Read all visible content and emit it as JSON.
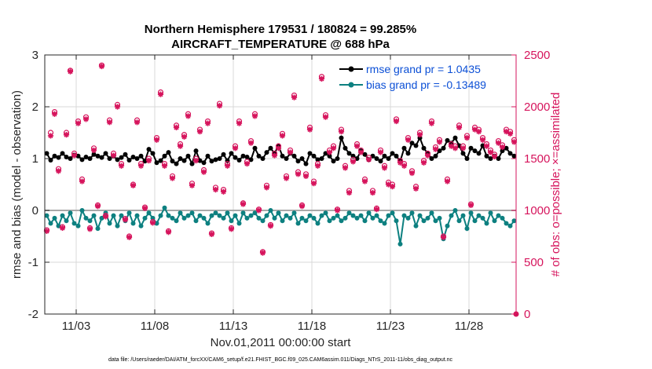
{
  "chart_data": {
    "type": "line",
    "title_line1": "Northern Hemisphere 179531 / 180824 = 99.285%",
    "title_line2": "AIRCRAFT_TEMPERATURE @ 688 hPa",
    "xlabel": "Nov.01,2011 00:00:00 start",
    "ylabel_left": "rmse and bias (model - observation)",
    "ylabel_right": "# of obs: o=possible; ×=assimilated",
    "footer": "data file: /Users/raeder/DAI/ATM_forcXX/CAM6_setup/f.e21.FHIST_BGC.f09_025.CAM6assim.011/Diags_NTrS_2011-11/obs_diag_output.nc",
    "xlim": [
      1.0,
      31.0
    ],
    "ylim_left": [
      -2,
      3
    ],
    "ylim_right": [
      0,
      2500
    ],
    "x_ticks": [
      3,
      8,
      13,
      18,
      23,
      28
    ],
    "x_tick_labels": [
      "11/03",
      "11/08",
      "11/13",
      "11/18",
      "11/23",
      "11/28"
    ],
    "y_left_ticks": [
      -2,
      -1,
      0,
      1,
      2,
      3
    ],
    "y_left_tick_labels": [
      "-2",
      "-1",
      "0",
      "1",
      "2",
      "3"
    ],
    "y_right_ticks": [
      0,
      500,
      1000,
      1500,
      2000,
      2500
    ],
    "y_right_tick_labels": [
      "0",
      "500",
      "1000",
      "1500",
      "2000",
      "2500"
    ],
    "colors": {
      "rmse": "#000000",
      "bias": "#0d8080",
      "obs": "#d6145c",
      "zero_line": "#aaaaaa",
      "grid": "#d9d9d9",
      "legend_text": "#0b4fd6"
    },
    "legend_position": "top-right",
    "series": [
      {
        "name": "rmse grand pr = 1.0435",
        "axis": "left",
        "x": [
          1.125,
          1.375,
          1.625,
          1.875,
          2.125,
          2.375,
          2.625,
          2.875,
          3.125,
          3.375,
          3.625,
          3.875,
          4.125,
          4.375,
          4.625,
          4.875,
          5.125,
          5.375,
          5.625,
          5.875,
          6.125,
          6.375,
          6.625,
          6.875,
          7.125,
          7.375,
          7.625,
          7.875,
          8.125,
          8.375,
          8.625,
          8.875,
          9.125,
          9.375,
          9.625,
          9.875,
          10.125,
          10.375,
          10.625,
          10.875,
          11.125,
          11.375,
          11.625,
          11.875,
          12.125,
          12.375,
          12.625,
          12.875,
          13.125,
          13.375,
          13.625,
          13.875,
          14.125,
          14.375,
          14.625,
          14.875,
          15.125,
          15.375,
          15.625,
          15.875,
          16.125,
          16.375,
          16.625,
          16.875,
          17.125,
          17.375,
          17.625,
          17.875,
          18.125,
          18.375,
          18.625,
          18.875,
          19.125,
          19.375,
          19.625,
          19.875,
          20.125,
          20.375,
          20.625,
          20.875,
          21.125,
          21.375,
          21.625,
          21.875,
          22.125,
          22.375,
          22.625,
          22.875,
          23.125,
          23.375,
          23.625,
          23.875,
          24.125,
          24.375,
          24.625,
          24.875,
          25.125,
          25.375,
          25.625,
          25.875,
          26.125,
          26.375,
          26.625,
          26.875,
          27.125,
          27.375,
          27.625,
          27.875,
          28.125,
          28.375,
          28.625,
          28.875,
          29.125,
          29.375,
          29.625,
          29.875,
          30.125,
          30.375,
          30.625,
          30.875
        ],
        "values": [
          1.1,
          0.97,
          1.05,
          1.02,
          1.1,
          1.03,
          1.0,
          1.07,
          1.05,
          0.98,
          1.03,
          1.0,
          1.08,
          1.05,
          1.02,
          1.1,
          1.0,
          1.05,
          0.98,
          1.02,
          1.08,
          0.97,
          1.03,
          1.0,
          1.05,
          0.95,
          1.18,
          1.1,
          0.92,
          0.96,
          1.05,
          1.12,
          0.95,
          0.9,
          1.0,
          0.96,
          1.05,
          0.9,
          1.15,
          0.96,
          0.92,
          1.05,
          0.95,
          0.98,
          1.0,
          1.08,
          0.96,
          1.1,
          1.02,
          0.97,
          1.05,
          1.03,
          0.98,
          1.2,
          1.05,
          1.0,
          1.12,
          1.2,
          1.1,
          1.25,
          1.05,
          1.0,
          1.1,
          1.05,
          0.95,
          1.0,
          0.9,
          1.1,
          1.05,
          0.98,
          1.0,
          1.1,
          1.05,
          0.95,
          1.0,
          1.4,
          1.2,
          1.1,
          1.05,
          1.0,
          1.15,
          1.08,
          0.98,
          1.05,
          1.0,
          0.95,
          1.05,
          1.0,
          1.1,
          1.05,
          0.95,
          1.2,
          1.1,
          1.3,
          1.25,
          1.4,
          1.2,
          1.1,
          1.0,
          1.05,
          1.15,
          1.2,
          1.35,
          1.3,
          1.4,
          1.25,
          1.1,
          1.0,
          1.2,
          1.15,
          1.1,
          1.25,
          1.05,
          1.0,
          1.05,
          1.0,
          1.15,
          1.2,
          1.1,
          1.05
        ]
      },
      {
        "name": "bias grand pr = -0.13489",
        "axis": "left",
        "x": [
          1.125,
          1.375,
          1.625,
          1.875,
          2.125,
          2.375,
          2.625,
          2.875,
          3.125,
          3.375,
          3.625,
          3.875,
          4.125,
          4.375,
          4.625,
          4.875,
          5.125,
          5.375,
          5.625,
          5.875,
          6.125,
          6.375,
          6.625,
          6.875,
          7.125,
          7.375,
          7.625,
          7.875,
          8.125,
          8.375,
          8.625,
          8.875,
          9.125,
          9.375,
          9.625,
          9.875,
          10.125,
          10.375,
          10.625,
          10.875,
          11.125,
          11.375,
          11.625,
          11.875,
          12.125,
          12.375,
          12.625,
          12.875,
          13.125,
          13.375,
          13.625,
          13.875,
          14.125,
          14.375,
          14.625,
          14.875,
          15.125,
          15.375,
          15.625,
          15.875,
          16.125,
          16.375,
          16.625,
          16.875,
          17.125,
          17.375,
          17.625,
          17.875,
          18.125,
          18.375,
          18.625,
          18.875,
          19.125,
          19.375,
          19.625,
          19.875,
          20.125,
          20.375,
          20.625,
          20.875,
          21.125,
          21.375,
          21.625,
          21.875,
          22.125,
          22.375,
          22.625,
          22.875,
          23.125,
          23.375,
          23.625,
          23.875,
          24.125,
          24.375,
          24.625,
          24.875,
          25.125,
          25.375,
          25.625,
          25.875,
          26.125,
          26.375,
          26.625,
          26.875,
          27.125,
          27.375,
          27.625,
          27.875,
          28.125,
          28.375,
          28.625,
          28.875,
          29.125,
          29.375,
          29.625,
          29.875,
          30.125,
          30.375,
          30.625,
          30.875
        ],
        "values": [
          -0.1,
          -0.25,
          -0.15,
          -0.3,
          -0.1,
          -0.2,
          -0.05,
          -0.25,
          -0.3,
          0.0,
          -0.15,
          -0.2,
          -0.1,
          -0.35,
          -0.15,
          -0.05,
          -0.25,
          -0.1,
          -0.3,
          -0.1,
          -0.2,
          -0.05,
          -0.25,
          -0.1,
          -0.3,
          -0.15,
          -0.05,
          -0.15,
          -0.25,
          -0.1,
          0.05,
          -0.1,
          -0.15,
          -0.2,
          -0.05,
          -0.15,
          -0.1,
          -0.05,
          -0.2,
          -0.1,
          -0.15,
          -0.25,
          -0.1,
          -0.05,
          -0.1,
          -0.15,
          -0.05,
          -0.2,
          -0.1,
          -0.25,
          -0.05,
          -0.15,
          -0.1,
          -0.05,
          -0.15,
          -0.2,
          -0.1,
          0.0,
          -0.15,
          -0.05,
          -0.2,
          -0.1,
          -0.15,
          -0.05,
          -0.25,
          -0.15,
          -0.2,
          -0.1,
          -0.15,
          -0.25,
          -0.1,
          -0.05,
          -0.2,
          -0.15,
          -0.1,
          -0.2,
          -0.15,
          -0.05,
          -0.1,
          -0.15,
          -0.1,
          -0.2,
          -0.05,
          -0.15,
          -0.1,
          -0.2,
          -0.25,
          -0.1,
          -0.05,
          -0.2,
          -0.65,
          -0.1,
          -0.15,
          -0.05,
          -0.3,
          -0.1,
          -0.2,
          -0.15,
          -0.05,
          -0.2,
          -0.15,
          -0.55,
          -0.3,
          -0.1,
          0.0,
          -0.2,
          -0.1,
          -0.35,
          -0.05,
          -0.2,
          -0.1,
          -0.15,
          -0.25,
          -0.05,
          -0.2,
          -0.1,
          -0.15,
          -0.25,
          -0.3,
          -0.2
        ]
      },
      {
        "name": "obs possible",
        "axis": "right",
        "marker": "circle",
        "x": [
          1.125,
          1.375,
          1.625,
          1.875,
          2.125,
          2.375,
          2.625,
          2.875,
          3.125,
          3.375,
          3.625,
          3.875,
          4.125,
          4.375,
          4.625,
          4.875,
          5.125,
          5.375,
          5.625,
          5.875,
          6.125,
          6.375,
          6.625,
          6.875,
          7.125,
          7.375,
          7.625,
          7.875,
          8.125,
          8.375,
          8.625,
          8.875,
          9.125,
          9.375,
          9.625,
          9.875,
          10.125,
          10.375,
          10.625,
          10.875,
          11.125,
          11.375,
          11.625,
          11.875,
          12.125,
          12.375,
          12.625,
          12.875,
          13.125,
          13.375,
          13.625,
          13.875,
          14.125,
          14.375,
          14.625,
          14.875,
          15.125,
          15.375,
          15.625,
          15.875,
          16.125,
          16.375,
          16.625,
          16.875,
          17.125,
          17.375,
          17.625,
          17.875,
          18.125,
          18.375,
          18.625,
          18.875,
          19.125,
          19.375,
          19.625,
          19.875,
          20.125,
          20.375,
          20.625,
          20.875,
          21.125,
          21.375,
          21.625,
          21.875,
          22.125,
          22.375,
          22.625,
          22.875,
          23.125,
          23.375,
          23.625,
          23.875,
          24.125,
          24.375,
          24.625,
          24.875,
          25.125,
          25.375,
          25.625,
          25.875,
          26.125,
          26.375,
          26.625,
          26.875,
          27.125,
          27.375,
          27.625,
          27.875,
          28.125,
          28.375,
          28.625,
          28.875,
          29.125,
          29.375,
          29.625,
          29.875,
          30.125,
          30.375,
          30.625,
          30.875
        ],
        "values": [
          810,
          1750,
          1950,
          1400,
          840,
          1750,
          2350,
          1550,
          1860,
          1300,
          1900,
          830,
          1600,
          1050,
          2400,
          950,
          1870,
          1550,
          2020,
          1450,
          920,
          750,
          1250,
          1870,
          1450,
          1030,
          1500,
          890,
          1700,
          2140,
          1450,
          800,
          1330,
          1820,
          1640,
          1730,
          1930,
          1260,
          1500,
          1780,
          1390,
          1860,
          780,
          1220,
          2030,
          1200,
          1450,
          830,
          1620,
          1860,
          1070,
          1470,
          1670,
          1930,
          1010,
          600,
          1240,
          860,
          1550,
          1620,
          1740,
          1330,
          1580,
          2110,
          1370,
          1050,
          1350,
          1800,
          1280,
          1450,
          2290,
          1920,
          1580,
          1620,
          1010,
          1780,
          1430,
          1190,
          1490,
          1640,
          1580,
          1300,
          1510,
          1190,
          1020,
          1580,
          1430,
          1270,
          1250,
          1880,
          1480,
          1450,
          1700,
          1380,
          1230,
          1750,
          1480,
          1550,
          1860,
          1610,
          1680,
          750,
          1300,
          1640,
          1620,
          1820,
          1620,
          1720,
          1060,
          1800,
          1780,
          1700,
          1640,
          1580,
          1540,
          1670,
          1630,
          1780,
          1760,
          1680
        ]
      },
      {
        "name": "obs assimilated",
        "axis": "right",
        "marker": "asterisk",
        "x": [
          1.125,
          1.375,
          1.625,
          1.875,
          2.125,
          2.375,
          2.625,
          2.875,
          3.125,
          3.375,
          3.625,
          3.875,
          4.125,
          4.375,
          4.625,
          4.875,
          5.125,
          5.375,
          5.625,
          5.875,
          6.125,
          6.375,
          6.625,
          6.875,
          7.125,
          7.375,
          7.625,
          7.875,
          8.125,
          8.375,
          8.625,
          8.875,
          9.125,
          9.375,
          9.625,
          9.875,
          10.125,
          10.375,
          10.625,
          10.875,
          11.125,
          11.375,
          11.625,
          11.875,
          12.125,
          12.375,
          12.625,
          12.875,
          13.125,
          13.375,
          13.625,
          13.875,
          14.125,
          14.375,
          14.625,
          14.875,
          15.125,
          15.375,
          15.625,
          15.875,
          16.125,
          16.375,
          16.625,
          16.875,
          17.125,
          17.375,
          17.625,
          17.875,
          18.125,
          18.375,
          18.625,
          18.875,
          19.125,
          19.375,
          19.625,
          19.875,
          20.125,
          20.375,
          20.625,
          20.875,
          21.125,
          21.375,
          21.625,
          21.875,
          22.125,
          22.375,
          22.625,
          22.875,
          23.125,
          23.375,
          23.625,
          23.875,
          24.125,
          24.375,
          24.625,
          24.875,
          25.125,
          25.375,
          25.625,
          25.875,
          26.125,
          26.375,
          26.625,
          26.875,
          27.125,
          27.375,
          27.625,
          27.875,
          28.125,
          28.375,
          28.625,
          28.875,
          29.125,
          29.375,
          29.625,
          29.875,
          30.125,
          30.375,
          30.625,
          30.875
        ],
        "values": [
          800,
          1720,
          1930,
          1380,
          830,
          1730,
          2340,
          1530,
          1840,
          1280,
          1880,
          820,
          1580,
          1040,
          2390,
          940,
          1850,
          1530,
          2000,
          1430,
          910,
          740,
          1240,
          1850,
          1430,
          1020,
          1480,
          880,
          1680,
          2120,
          1430,
          790,
          1310,
          1800,
          1620,
          1710,
          1910,
          1240,
          1480,
          1760,
          1370,
          1840,
          770,
          1200,
          2010,
          1180,
          1430,
          820,
          1600,
          1840,
          1060,
          1450,
          1650,
          1910,
          1000,
          590,
          1220,
          850,
          1530,
          1600,
          1720,
          1310,
          1560,
          2090,
          1350,
          1040,
          1330,
          1780,
          1260,
          1430,
          2270,
          1900,
          1560,
          1600,
          1000,
          1760,
          1410,
          1170,
          1470,
          1620,
          1560,
          1280,
          1490,
          1170,
          1010,
          1560,
          1410,
          1250,
          1230,
          1860,
          1460,
          1430,
          1680,
          1360,
          1210,
          1730,
          1460,
          1530,
          1840,
          1590,
          1660,
          740,
          1280,
          1620,
          1600,
          1800,
          1600,
          1700,
          1050,
          1780,
          1760,
          1680,
          1620,
          1560,
          1520,
          1650,
          1610,
          1760,
          1740,
          1660
        ]
      }
    ],
    "extra_point": {
      "x": 31.0,
      "value": 0
    }
  }
}
